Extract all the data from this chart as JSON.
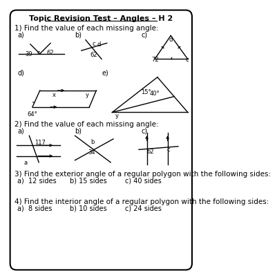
{
  "title": "Topic Revision Test – Angles – H 2",
  "q1_text": "1) Find the value of each missing angle:",
  "q2_text": "2) Find the value of each missing angle:",
  "q3_text": "3) Find the exterior angle of a regular polygon with the following sides:",
  "q3a": "a)  12 sides",
  "q3b": "b) 15 sides",
  "q3c": "c) 40 sides",
  "q4_text": "4) Find the interior angle of a regular polygon with the following sides:",
  "q4a": "a)  8 sides",
  "q4b": "b) 10 sides",
  "q4c": "c) 24 sides",
  "bg_color": "#ffffff",
  "border_color": "#000000",
  "text_color": "#000000",
  "line_color": "#000000"
}
